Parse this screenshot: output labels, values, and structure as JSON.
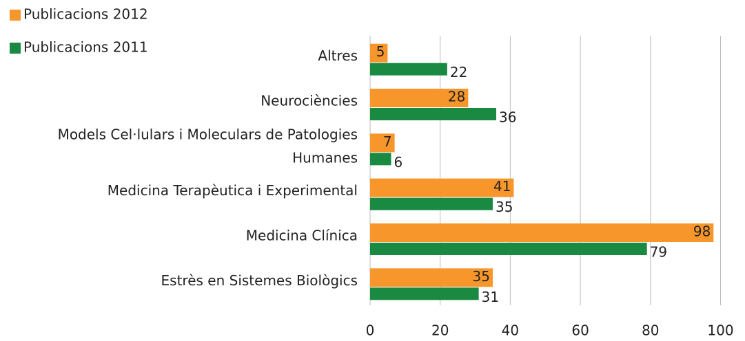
{
  "chart_data": {
    "type": "hbar",
    "categories": [
      "Altres",
      "Neurociències",
      "Models Cel·lulars i Moleculars de Patologies Humanes",
      "Medicina Terapèutica i Experimental",
      "Medicina Clínica",
      "Estrès en Sistemes Biològics"
    ],
    "series": [
      {
        "name": "Publicacions 2012",
        "color": "#f7962b",
        "values": [
          5,
          28,
          7,
          41,
          98,
          35
        ]
      },
      {
        "name": "Publicacions 2011",
        "color": "#1a8a43",
        "values": [
          22,
          36,
          6,
          35,
          79,
          31
        ]
      }
    ],
    "xlim": [
      0,
      106
    ],
    "xticks": [
      0,
      20,
      40,
      60,
      80,
      100
    ],
    "grid": true
  }
}
